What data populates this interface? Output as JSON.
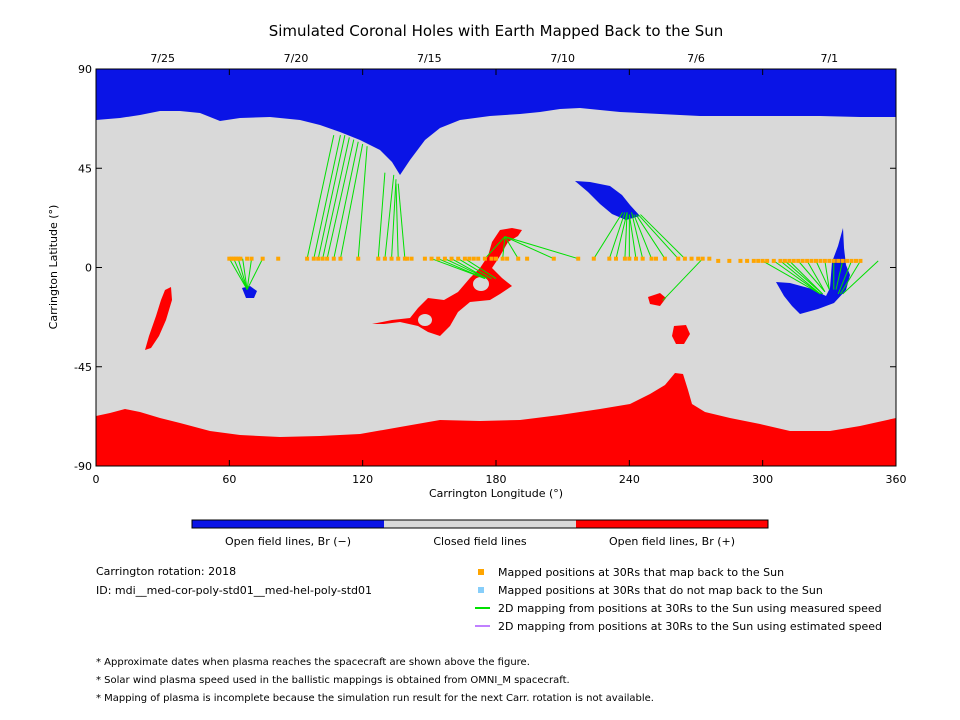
{
  "chart_data": {
    "type": "map",
    "title": "Simulated Coronal Holes with Earth Mapped Back to the Sun",
    "xlabel": "Carrington Longitude (°)",
    "ylabel": "Carrington Latitude (°)",
    "xlim": [
      0,
      360
    ],
    "ylim": [
      -90,
      90
    ],
    "x_ticks": [
      "0",
      "60",
      "120",
      "180",
      "240",
      "300",
      "360"
    ],
    "y_ticks": [
      "90",
      "45",
      "0",
      "-45",
      "-90"
    ],
    "date_ticks": [
      {
        "label": "7/25",
        "lon": 30
      },
      {
        "label": "7/20",
        "lon": 90
      },
      {
        "label": "7/15",
        "lon": 150
      },
      {
        "label": "7/10",
        "lon": 210
      },
      {
        "label": "7/6",
        "lon": 270
      },
      {
        "label": "7/1",
        "lon": 330
      }
    ],
    "colors": {
      "open_negative": "#0a14e6",
      "closed": "#d9d9d9",
      "open_positive": "#ff0000",
      "mapped_point": "#ffa500",
      "unmapped_point": "#87cefa",
      "measured_line": "#00e000",
      "estimated_line": "#c080ff"
    },
    "mapped_points": [
      [
        60,
        4
      ],
      [
        61,
        4
      ],
      [
        62,
        4
      ],
      [
        63,
        4
      ],
      [
        64,
        4
      ],
      [
        65,
        4
      ],
      [
        68,
        4
      ],
      [
        70,
        4
      ],
      [
        75,
        4
      ],
      [
        82,
        4
      ],
      [
        95,
        4
      ],
      [
        98,
        4
      ],
      [
        100,
        4
      ],
      [
        102,
        4
      ],
      [
        104,
        4
      ],
      [
        107,
        4
      ],
      [
        110,
        4
      ],
      [
        118,
        4
      ],
      [
        127,
        4
      ],
      [
        130,
        4
      ],
      [
        133,
        4
      ],
      [
        136,
        4
      ],
      [
        139,
        4
      ],
      [
        140,
        4
      ],
      [
        142,
        4
      ],
      [
        148,
        4
      ],
      [
        151,
        4
      ],
      [
        154,
        4
      ],
      [
        157,
        4
      ],
      [
        160,
        4
      ],
      [
        163,
        4
      ],
      [
        166,
        4
      ],
      [
        168,
        4
      ],
      [
        170,
        4
      ],
      [
        172,
        4
      ],
      [
        175,
        4
      ],
      [
        178,
        4
      ],
      [
        180,
        4
      ],
      [
        183,
        4
      ],
      [
        185,
        4
      ],
      [
        190,
        4
      ],
      [
        194,
        4
      ],
      [
        206,
        4
      ],
      [
        217,
        4
      ],
      [
        224,
        4
      ],
      [
        231,
        4
      ],
      [
        234,
        4
      ],
      [
        238,
        4
      ],
      [
        240,
        4
      ],
      [
        243,
        4
      ],
      [
        246,
        4
      ],
      [
        250,
        4
      ],
      [
        252,
        4
      ],
      [
        256,
        4
      ],
      [
        262,
        4
      ],
      [
        265,
        4
      ],
      [
        268,
        4
      ],
      [
        271,
        4
      ],
      [
        273,
        4
      ],
      [
        276,
        4
      ],
      [
        280,
        3
      ],
      [
        285,
        3
      ],
      [
        290,
        3
      ],
      [
        293,
        3
      ],
      [
        296,
        3
      ],
      [
        298,
        3
      ],
      [
        300,
        3
      ],
      [
        302,
        3
      ],
      [
        305,
        3
      ],
      [
        308,
        3
      ],
      [
        310,
        3
      ],
      [
        312,
        3
      ],
      [
        314,
        3
      ],
      [
        316,
        3
      ],
      [
        318,
        3
      ],
      [
        320,
        3
      ],
      [
        322,
        3
      ],
      [
        324,
        3
      ],
      [
        326,
        3
      ],
      [
        328,
        3
      ],
      [
        330,
        3
      ],
      [
        332,
        3
      ],
      [
        334,
        3
      ],
      [
        336,
        3
      ],
      [
        338,
        3
      ],
      [
        340,
        3
      ],
      [
        342,
        3
      ],
      [
        344,
        3
      ]
    ],
    "measured_mappings": [
      [
        [
          60,
          4
        ],
        [
          68,
          -10
        ]
      ],
      [
        [
          62,
          4
        ],
        [
          68,
          -10
        ]
      ],
      [
        [
          64,
          4
        ],
        [
          68,
          -10
        ]
      ],
      [
        [
          66,
          4
        ],
        [
          68,
          -10
        ]
      ],
      [
        [
          70,
          4
        ],
        [
          68,
          -10
        ]
      ],
      [
        [
          75,
          4
        ],
        [
          68,
          -10
        ]
      ],
      [
        [
          95,
          4
        ],
        [
          107,
          60
        ]
      ],
      [
        [
          98,
          4
        ],
        [
          110,
          60
        ]
      ],
      [
        [
          100,
          4
        ],
        [
          112,
          60
        ]
      ],
      [
        [
          102,
          4
        ],
        [
          114,
          59
        ]
      ],
      [
        [
          104,
          4
        ],
        [
          116,
          58
        ]
      ],
      [
        [
          107,
          4
        ],
        [
          118,
          57
        ]
      ],
      [
        [
          110,
          4
        ],
        [
          120,
          56
        ]
      ],
      [
        [
          118,
          4
        ],
        [
          122,
          55
        ]
      ],
      [
        [
          127,
          4
        ],
        [
          130,
          43
        ]
      ],
      [
        [
          130,
          4
        ],
        [
          134,
          42
        ]
      ],
      [
        [
          133,
          4
        ],
        [
          135,
          40
        ]
      ],
      [
        [
          136,
          4
        ],
        [
          135,
          38
        ]
      ],
      [
        [
          139,
          4
        ],
        [
          136,
          38
        ]
      ],
      [
        [
          151,
          4
        ],
        [
          175,
          -5
        ]
      ],
      [
        [
          154,
          4
        ],
        [
          175,
          -5
        ]
      ],
      [
        [
          157,
          4
        ],
        [
          176,
          -5
        ]
      ],
      [
        [
          160,
          4
        ],
        [
          176,
          -5
        ]
      ],
      [
        [
          163,
          4
        ],
        [
          178,
          -5
        ]
      ],
      [
        [
          166,
          4
        ],
        [
          180,
          -5
        ]
      ],
      [
        [
          175,
          4
        ],
        [
          184,
          14
        ]
      ],
      [
        [
          183,
          4
        ],
        [
          184,
          14
        ]
      ],
      [
        [
          190,
          4
        ],
        [
          184,
          14
        ]
      ],
      [
        [
          206,
          4
        ],
        [
          184,
          14
        ]
      ],
      [
        [
          217,
          4
        ],
        [
          184,
          14
        ]
      ],
      [
        [
          224,
          4
        ],
        [
          237,
          25
        ]
      ],
      [
        [
          231,
          4
        ],
        [
          238,
          25
        ]
      ],
      [
        [
          234,
          4
        ],
        [
          239,
          25
        ]
      ],
      [
        [
          238,
          4
        ],
        [
          239,
          25
        ]
      ],
      [
        [
          240,
          4
        ],
        [
          240,
          24
        ]
      ],
      [
        [
          243,
          4
        ],
        [
          240,
          24
        ]
      ],
      [
        [
          246,
          4
        ],
        [
          241,
          25
        ]
      ],
      [
        [
          250,
          4
        ],
        [
          242,
          24
        ]
      ],
      [
        [
          256,
          4
        ],
        [
          243,
          24
        ]
      ],
      [
        [
          262,
          4
        ],
        [
          244,
          24
        ]
      ],
      [
        [
          265,
          4
        ],
        [
          245,
          24
        ]
      ],
      [
        [
          273,
          4
        ],
        [
          255,
          -15
        ]
      ],
      [
        [
          300,
          3
        ],
        [
          326,
          -12
        ]
      ],
      [
        [
          305,
          3
        ],
        [
          326,
          -12
        ]
      ],
      [
        [
          308,
          3
        ],
        [
          326,
          -12
        ]
      ],
      [
        [
          310,
          3
        ],
        [
          327,
          -12
        ]
      ],
      [
        [
          312,
          3
        ],
        [
          327,
          -12
        ]
      ],
      [
        [
          316,
          3
        ],
        [
          328,
          -11
        ]
      ],
      [
        [
          320,
          3
        ],
        [
          328,
          -11
        ]
      ],
      [
        [
          324,
          3
        ],
        [
          330,
          -10
        ]
      ],
      [
        [
          328,
          3
        ],
        [
          330,
          -10
        ]
      ],
      [
        [
          332,
          3
        ],
        [
          332,
          -10
        ]
      ],
      [
        [
          336,
          3
        ],
        [
          333,
          -10
        ]
      ],
      [
        [
          340,
          3
        ],
        [
          334,
          -12
        ]
      ],
      [
        [
          344,
          3
        ],
        [
          335,
          -12
        ]
      ],
      [
        [
          352,
          3
        ],
        [
          336,
          -12
        ]
      ]
    ]
  },
  "legend": {
    "colorbar_labels": [
      "Open field lines, Br (−)",
      "Closed field lines",
      "Open field lines, Br (+)"
    ],
    "carrington_rotation": "Carrington rotation: 2018",
    "run_id": "ID: mdi__med-cor-poly-std01__med-hel-poly-std01",
    "items": [
      "Mapped positions at 30Rs that map back to the Sun",
      "Mapped positions at 30Rs that do not map back to the Sun",
      "2D mapping from positions at 30Rs to the Sun using measured speed",
      "2D mapping from positions at 30Rs to the Sun using estimated speed"
    ]
  },
  "notes": [
    "* Approximate dates when plasma reaches the spacecraft are shown above the figure.",
    "* Solar wind plasma speed used in the ballistic mappings is obtained from OMNI_M spacecraft.",
    "* Mapping of plasma is incomplete because the simulation run result for the next Carr. rotation is not available."
  ]
}
